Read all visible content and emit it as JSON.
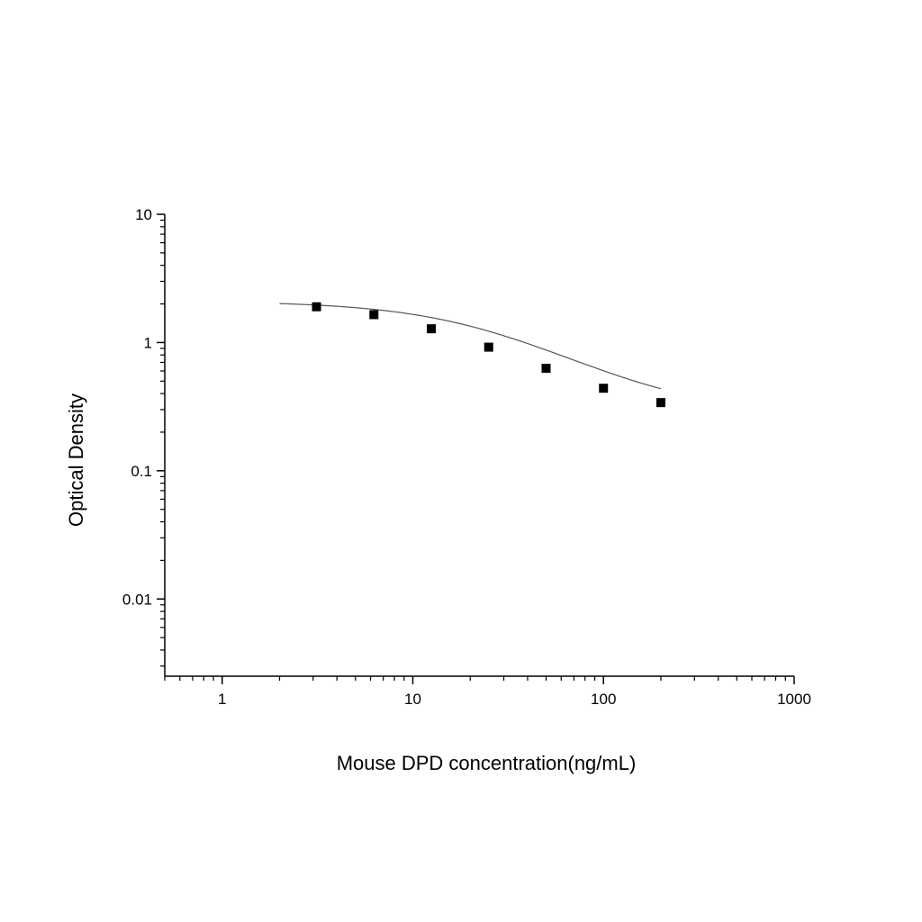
{
  "chart_data": {
    "type": "scatter",
    "title": "",
    "xlabel": "Mouse DPD concentration(ng/mL)",
    "ylabel": "Optical Density",
    "x_scale": "log",
    "y_scale": "log",
    "xlim": [
      0.5,
      1000
    ],
    "ylim": [
      0.0025,
      10
    ],
    "x_ticks": [
      {
        "value": 1,
        "label": "1"
      },
      {
        "value": 10,
        "label": "10"
      },
      {
        "value": 100,
        "label": "100"
      },
      {
        "value": 1000,
        "label": "1000"
      }
    ],
    "y_ticks": [
      {
        "value": 10,
        "label": "10"
      },
      {
        "value": 1,
        "label": "1"
      },
      {
        "value": 0.1,
        "label": "0.1"
      },
      {
        "value": 0.01,
        "label": "0.01"
      }
    ],
    "grid": false,
    "legend": "none",
    "series": [
      {
        "x": [
          3.125,
          6.25,
          12.5,
          25,
          50,
          100,
          200
        ],
        "y": [
          1.9,
          1.65,
          1.28,
          0.92,
          0.63,
          0.44,
          0.34
        ],
        "marker": "square",
        "color": "#000000"
      }
    ],
    "fit_curve": {
      "type": "4PL",
      "A": 2.1,
      "D": 0.27,
      "C": 27,
      "B": 1.15,
      "x_range": [
        2,
        200
      ],
      "color": "#555555"
    }
  }
}
